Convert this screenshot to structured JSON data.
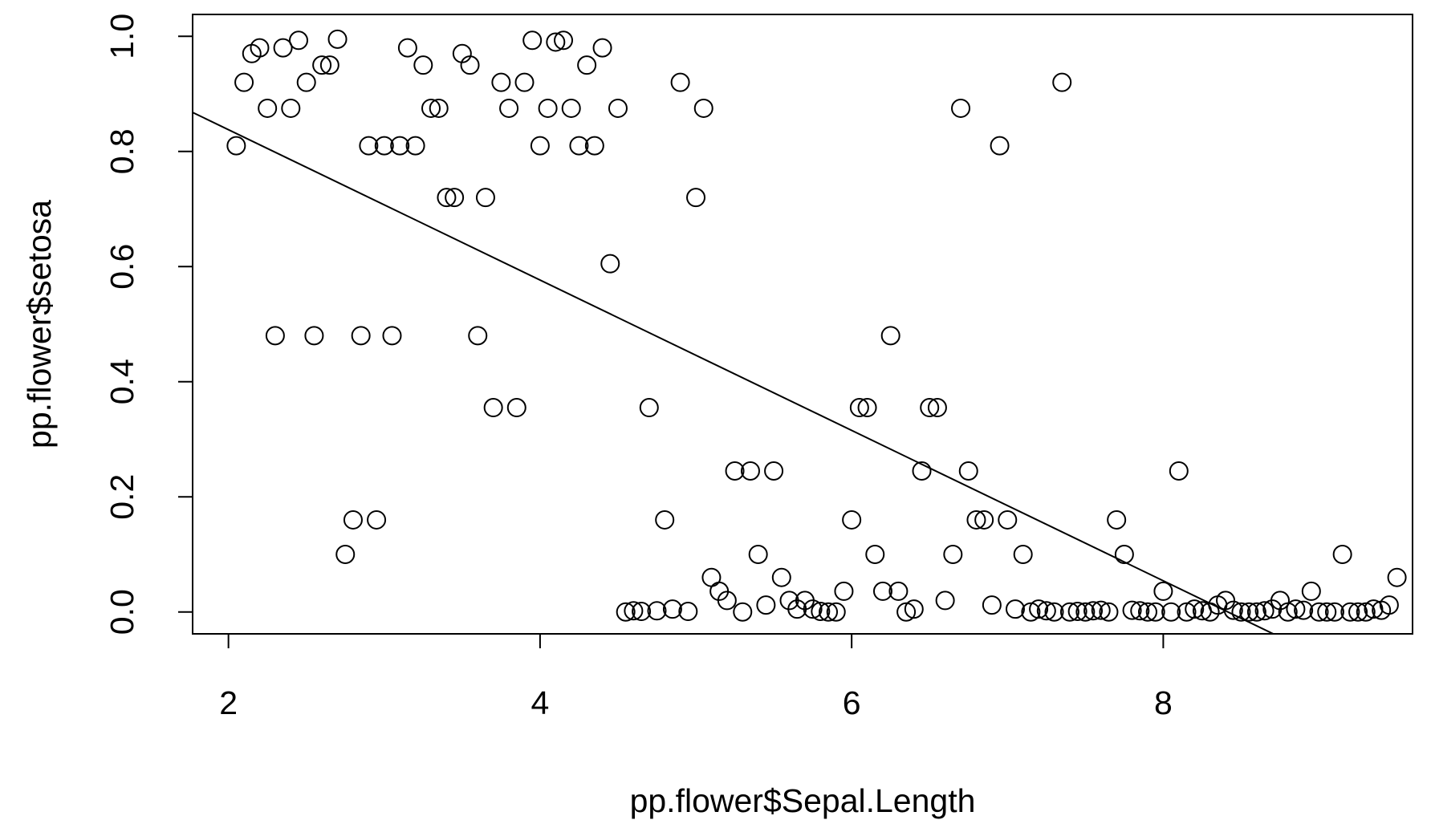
{
  "chart_data": {
    "type": "scatter",
    "title": "",
    "xlabel": "pp.flower$Sepal.Length",
    "ylabel": "pp.flower$setosa",
    "xlim": [
      1.77,
      9.6
    ],
    "ylim": [
      -0.038,
      1.038
    ],
    "x_ticks": [
      "2",
      "4",
      "6",
      "8"
    ],
    "y_ticks": [
      "0.0",
      "0.2",
      "0.4",
      "0.6",
      "0.8",
      "1.0"
    ],
    "grid": false,
    "legend": "none",
    "points": [
      [
        2.05,
        0.81
      ],
      [
        2.1,
        0.92
      ],
      [
        2.15,
        0.97
      ],
      [
        2.2,
        0.98
      ],
      [
        2.25,
        0.875
      ],
      [
        2.3,
        0.48
      ],
      [
        2.35,
        0.98
      ],
      [
        2.4,
        0.875
      ],
      [
        2.45,
        0.993
      ],
      [
        2.5,
        0.92
      ],
      [
        2.55,
        0.48
      ],
      [
        2.6,
        0.95
      ],
      [
        2.65,
        0.95
      ],
      [
        2.7,
        0.995
      ],
      [
        2.75,
        0.1
      ],
      [
        2.8,
        0.16
      ],
      [
        2.85,
        0.48
      ],
      [
        2.9,
        0.81
      ],
      [
        2.95,
        0.16
      ],
      [
        3.0,
        0.81
      ],
      [
        3.05,
        0.48
      ],
      [
        3.1,
        0.81
      ],
      [
        3.15,
        0.98
      ],
      [
        3.2,
        0.81
      ],
      [
        3.25,
        0.95
      ],
      [
        3.3,
        0.875
      ],
      [
        3.35,
        0.875
      ],
      [
        3.4,
        0.72
      ],
      [
        3.45,
        0.72
      ],
      [
        3.5,
        0.97
      ],
      [
        3.55,
        0.95
      ],
      [
        3.6,
        0.48
      ],
      [
        3.65,
        0.72
      ],
      [
        3.7,
        0.355
      ],
      [
        3.75,
        0.92
      ],
      [
        3.8,
        0.875
      ],
      [
        3.85,
        0.355
      ],
      [
        3.9,
        0.92
      ],
      [
        3.95,
        0.993
      ],
      [
        4.0,
        0.81
      ],
      [
        4.05,
        0.875
      ],
      [
        4.1,
        0.99
      ],
      [
        4.15,
        0.993
      ],
      [
        4.2,
        0.875
      ],
      [
        4.25,
        0.81
      ],
      [
        4.3,
        0.95
      ],
      [
        4.35,
        0.81
      ],
      [
        4.4,
        0.98
      ],
      [
        4.45,
        0.605
      ],
      [
        4.5,
        0.875
      ],
      [
        4.55,
        0.0
      ],
      [
        4.6,
        0.002
      ],
      [
        4.65,
        0.001
      ],
      [
        4.7,
        0.355
      ],
      [
        4.75,
        0.002
      ],
      [
        4.8,
        0.16
      ],
      [
        4.85,
        0.005
      ],
      [
        4.9,
        0.92
      ],
      [
        4.95,
        0.001
      ],
      [
        5.0,
        0.72
      ],
      [
        5.05,
        0.875
      ],
      [
        5.1,
        0.06
      ],
      [
        5.15,
        0.036
      ],
      [
        5.2,
        0.02
      ],
      [
        5.25,
        0.245
      ],
      [
        5.3,
        0.0
      ],
      [
        5.35,
        0.245
      ],
      [
        5.4,
        0.1
      ],
      [
        5.45,
        0.012
      ],
      [
        5.5,
        0.245
      ],
      [
        5.55,
        0.06
      ],
      [
        5.6,
        0.02
      ],
      [
        5.65,
        0.005
      ],
      [
        5.7,
        0.02
      ],
      [
        5.75,
        0.005
      ],
      [
        5.8,
        0.001
      ],
      [
        5.85,
        0.0
      ],
      [
        5.9,
        0.0
      ],
      [
        5.95,
        0.036
      ],
      [
        6.0,
        0.16
      ],
      [
        6.05,
        0.355
      ],
      [
        6.1,
        0.355
      ],
      [
        6.15,
        0.1
      ],
      [
        6.2,
        0.036
      ],
      [
        6.25,
        0.48
      ],
      [
        6.3,
        0.036
      ],
      [
        6.35,
        0.0
      ],
      [
        6.4,
        0.005
      ],
      [
        6.45,
        0.245
      ],
      [
        6.5,
        0.355
      ],
      [
        6.55,
        0.355
      ],
      [
        6.6,
        0.02
      ],
      [
        6.65,
        0.1
      ],
      [
        6.7,
        0.875
      ],
      [
        6.75,
        0.245
      ],
      [
        6.8,
        0.16
      ],
      [
        6.85,
        0.16
      ],
      [
        6.9,
        0.012
      ],
      [
        6.95,
        0.81
      ],
      [
        7.0,
        0.16
      ],
      [
        7.05,
        0.005
      ],
      [
        7.1,
        0.1
      ],
      [
        7.15,
        0.0
      ],
      [
        7.2,
        0.005
      ],
      [
        7.25,
        0.002
      ],
      [
        7.3,
        0.0
      ],
      [
        7.35,
        0.92
      ],
      [
        7.4,
        0.0
      ],
      [
        7.45,
        0.001
      ],
      [
        7.5,
        0.0
      ],
      [
        7.55,
        0.002
      ],
      [
        7.6,
        0.003
      ],
      [
        7.65,
        0.0
      ],
      [
        7.7,
        0.16
      ],
      [
        7.75,
        0.1
      ],
      [
        7.8,
        0.003
      ],
      [
        7.85,
        0.002
      ],
      [
        7.9,
        0.0
      ],
      [
        7.95,
        0.0
      ],
      [
        8.0,
        0.036
      ],
      [
        8.05,
        0.0
      ],
      [
        8.1,
        0.245
      ],
      [
        8.15,
        0.0
      ],
      [
        8.2,
        0.005
      ],
      [
        8.25,
        0.002
      ],
      [
        8.3,
        0.0
      ],
      [
        8.35,
        0.012
      ],
      [
        8.4,
        0.02
      ],
      [
        8.45,
        0.003
      ],
      [
        8.5,
        0.0
      ],
      [
        8.55,
        0.0
      ],
      [
        8.6,
        0.0
      ],
      [
        8.65,
        0.002
      ],
      [
        8.7,
        0.005
      ],
      [
        8.75,
        0.02
      ],
      [
        8.8,
        0.0
      ],
      [
        8.85,
        0.005
      ],
      [
        8.9,
        0.003
      ],
      [
        8.95,
        0.036
      ],
      [
        9.0,
        0.0
      ],
      [
        9.05,
        0.0
      ],
      [
        9.1,
        0.0
      ],
      [
        9.15,
        0.1
      ],
      [
        9.2,
        0.0
      ],
      [
        9.25,
        0.0
      ],
      [
        9.3,
        0.0
      ],
      [
        9.35,
        0.005
      ],
      [
        9.4,
        0.003
      ],
      [
        9.45,
        0.012
      ],
      [
        9.5,
        0.06
      ]
    ],
    "fit_line": {
      "intercept": 1.099,
      "slope": -0.1306
    }
  }
}
